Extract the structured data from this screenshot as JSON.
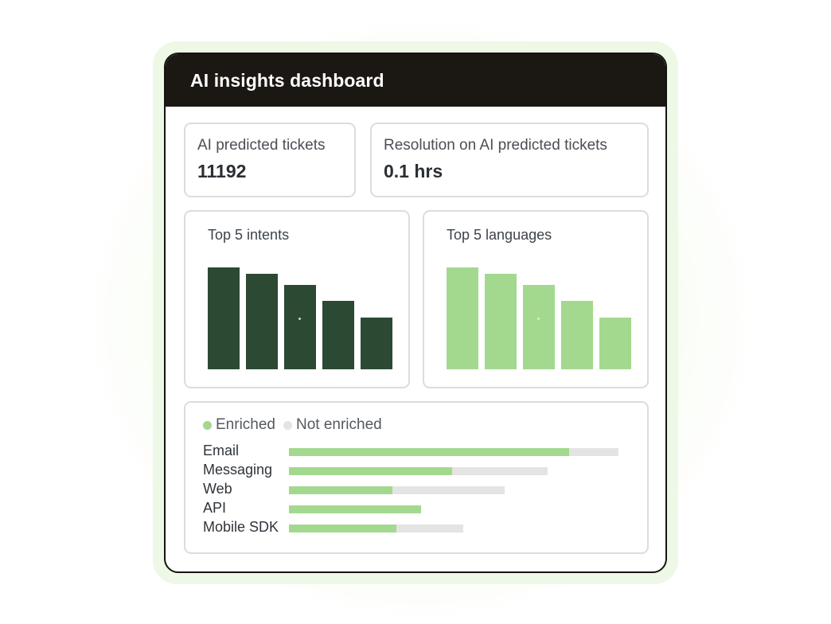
{
  "dashboard": {
    "title": "AI insights dashboard",
    "stats": [
      {
        "label": "AI predicted tickets",
        "value": "11192"
      },
      {
        "label": "Resolution on AI predicted tickets",
        "value": "0.1 hrs"
      }
    ]
  },
  "colors": {
    "header_bg": "#1b1712",
    "intents_bar": "#2c4a33",
    "languages_bar": "#a3d98f",
    "enriched": "#a3d98f",
    "not_enriched": "#e4e4e2"
  },
  "chart_data": [
    {
      "type": "bar",
      "title": "Top 5 intents",
      "categories": [
        "",
        "",
        "",
        "",
        ""
      ],
      "values": [
        100,
        94,
        83,
        67,
        51
      ],
      "ylim": [
        0,
        100
      ]
    },
    {
      "type": "bar",
      "title": "Top 5 languages",
      "categories": [
        "",
        "",
        "",
        "",
        ""
      ],
      "values": [
        100,
        94,
        83,
        67,
        51
      ],
      "ylim": [
        0,
        100
      ]
    },
    {
      "type": "bar",
      "orientation": "horizontal",
      "stacked": false,
      "legend": [
        {
          "name": "Enriched",
          "color": "#a3d98f"
        },
        {
          "name": "Not enriched",
          "color": "#e4e4e2"
        }
      ],
      "categories": [
        "Email",
        "Messaging",
        "Web",
        "API",
        "Mobile SDK"
      ],
      "series": [
        {
          "name": "Enriched",
          "values": [
            85,
            49.5,
            31.5,
            40,
            32.5
          ]
        },
        {
          "name": "Not enriched",
          "values": [
            100,
            78.5,
            65.5,
            40,
            53
          ]
        }
      ],
      "xlim": [
        0,
        100
      ]
    }
  ]
}
